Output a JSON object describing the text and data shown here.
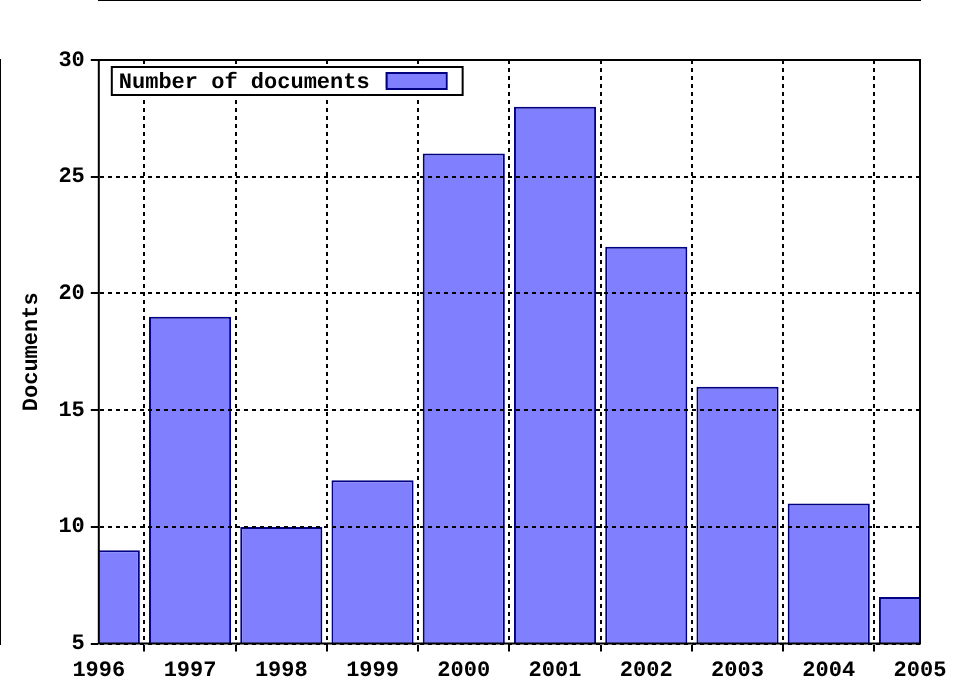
{
  "chart_data": {
    "type": "bar",
    "ylabel": "Documents",
    "x": [
      1996,
      1997,
      1998,
      1999,
      2000,
      2001,
      2002,
      2003,
      2004,
      2005
    ],
    "series": [
      {
        "name": "Number of documents",
        "color": "#8080ff",
        "values": [
          9,
          19,
          10,
          12,
          26,
          28,
          22,
          16,
          11,
          7
        ]
      }
    ],
    "xlim": [
      1996,
      2005
    ],
    "xticks": [
      1996,
      1997,
      1998,
      1999,
      2000,
      2001,
      2002,
      2003,
      2004,
      2005
    ],
    "ylim": [
      5,
      30
    ],
    "yticks": [
      5,
      10,
      15,
      20,
      25,
      30
    ],
    "grid": true,
    "legend": "top left",
    "line_style": "dotted"
  }
}
